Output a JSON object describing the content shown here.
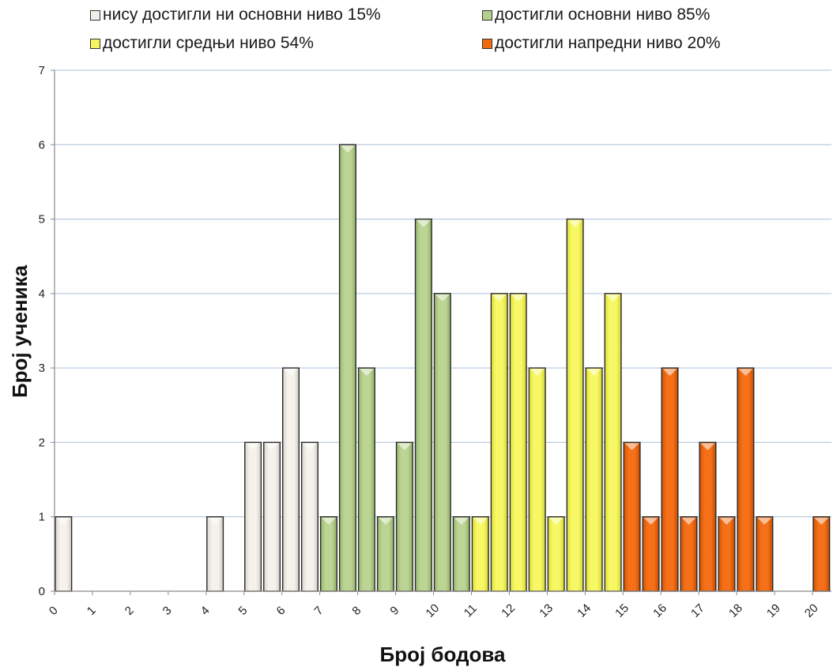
{
  "chart_data": {
    "type": "bar",
    "xlabel": "Број бодова",
    "ylabel": "Број ученика",
    "ylim": [
      0,
      7
    ],
    "yticks": [
      0,
      1,
      2,
      3,
      4,
      5,
      6,
      7
    ],
    "xticks": [
      0,
      1,
      2,
      3,
      4,
      5,
      6,
      7,
      8,
      9,
      10,
      11,
      12,
      13,
      14,
      15,
      16,
      17,
      18,
      19,
      20
    ],
    "grid": "horizontal",
    "legend_position": "top",
    "legend": [
      {
        "label": "нису достигли ни основни ниво 15%",
        "color": "#f0eee6"
      },
      {
        "label": "достигли основни ниво 85%",
        "color": "#b5cf8c"
      },
      {
        "label": "достигли средњи ниво 54%",
        "color": "#f5f55e"
      },
      {
        "label": "достигли напредни ниво 20%",
        "color": "#f06a10"
      }
    ],
    "bars": [
      {
        "x": 0,
        "value": 1,
        "level": 0
      },
      {
        "x": 4,
        "value": 1,
        "level": 0
      },
      {
        "x": 5,
        "value": 2,
        "level": 0
      },
      {
        "x": 5.5,
        "value": 2,
        "level": 0
      },
      {
        "x": 6,
        "value": 3,
        "level": 0
      },
      {
        "x": 6.5,
        "value": 2,
        "level": 0
      },
      {
        "x": 7,
        "value": 1,
        "level": 1
      },
      {
        "x": 7.5,
        "value": 6,
        "level": 1
      },
      {
        "x": 8,
        "value": 3,
        "level": 1
      },
      {
        "x": 8.5,
        "value": 1,
        "level": 1
      },
      {
        "x": 9,
        "value": 2,
        "level": 1
      },
      {
        "x": 9.5,
        "value": 5,
        "level": 1
      },
      {
        "x": 10,
        "value": 4,
        "level": 1
      },
      {
        "x": 10.5,
        "value": 1,
        "level": 1
      },
      {
        "x": 11,
        "value": 1,
        "level": 2
      },
      {
        "x": 11.5,
        "value": 4,
        "level": 2
      },
      {
        "x": 12,
        "value": 4,
        "level": 2
      },
      {
        "x": 12.5,
        "value": 3,
        "level": 2
      },
      {
        "x": 13,
        "value": 1,
        "level": 2
      },
      {
        "x": 13.5,
        "value": 5,
        "level": 2
      },
      {
        "x": 14,
        "value": 3,
        "level": 2
      },
      {
        "x": 14.5,
        "value": 4,
        "level": 2
      },
      {
        "x": 15,
        "value": 2,
        "level": 3
      },
      {
        "x": 15.5,
        "value": 1,
        "level": 3
      },
      {
        "x": 16,
        "value": 3,
        "level": 3
      },
      {
        "x": 16.5,
        "value": 1,
        "level": 3
      },
      {
        "x": 17,
        "value": 2,
        "level": 3
      },
      {
        "x": 17.5,
        "value": 1,
        "level": 3
      },
      {
        "x": 18,
        "value": 3,
        "level": 3
      },
      {
        "x": 18.5,
        "value": 1,
        "level": 3
      },
      {
        "x": 20,
        "value": 1,
        "level": 3
      }
    ]
  }
}
